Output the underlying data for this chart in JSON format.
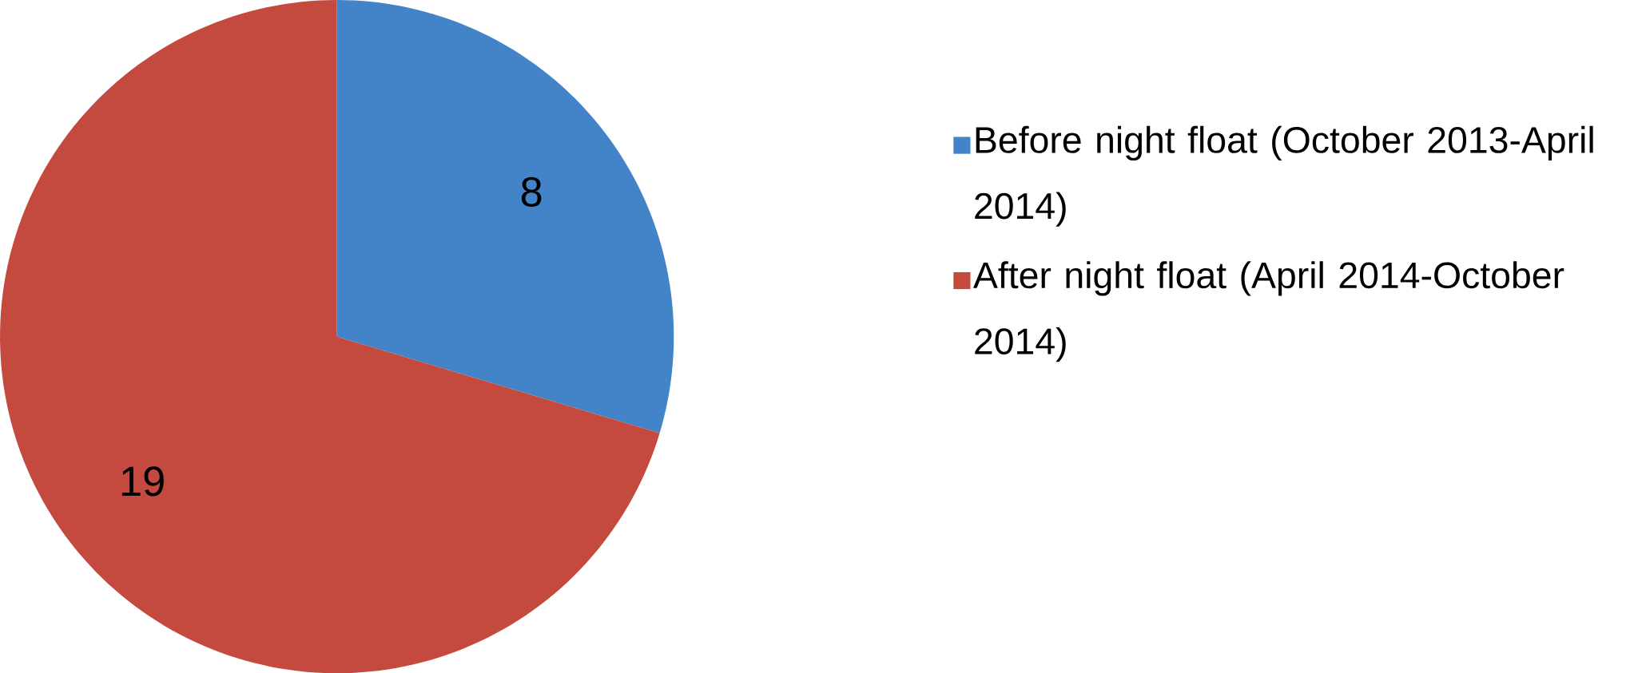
{
  "chart_data": {
    "type": "pie",
    "categories": [
      "Before night float (October 2013-April 2014)",
      "After night float (April 2014-October 2014)"
    ],
    "values": [
      8,
      19
    ],
    "colors": [
      "#4384c8",
      "#c44a3f"
    ],
    "data_labels": true,
    "legend": "right"
  }
}
